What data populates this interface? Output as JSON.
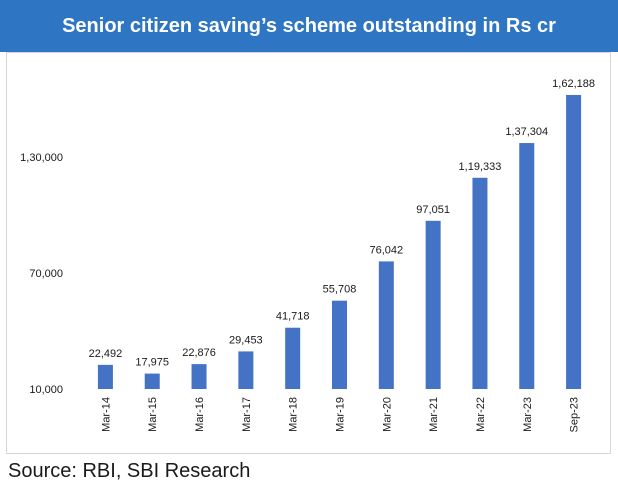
{
  "header": {
    "title": "Senior citizen saving’s scheme outstanding in Rs cr"
  },
  "footer": {
    "source": "Source: RBI, SBI Research"
  },
  "colors": {
    "title_bg": "#2e75c4",
    "bar": "#4472c4",
    "text": "#1a1a1a"
  },
  "chart_data": {
    "type": "bar",
    "title": "Senior citizen saving’s scheme outstanding in Rs cr",
    "xlabel": "",
    "ylabel": "",
    "categories": [
      "Mar-14",
      "Mar-15",
      "Mar-16",
      "Mar-17",
      "Mar-18",
      "Mar-19",
      "Mar-20",
      "Mar-21",
      "Mar-22",
      "Mar-23",
      "Sep-23"
    ],
    "values": [
      22492,
      17975,
      22876,
      29453,
      41718,
      55708,
      76042,
      97051,
      119333,
      137304,
      162188
    ],
    "value_labels": [
      "22,492",
      "17,975",
      "22,876",
      "29,453",
      "41,718",
      "55,708",
      "76,042",
      "97,051",
      "1,19,333",
      "1,37,304",
      "1,62,188"
    ],
    "yticks": [
      10000,
      70000,
      130000
    ],
    "ytick_labels": [
      "10,000",
      "70,000",
      "1,30,000"
    ],
    "ylim": [
      10000,
      165000
    ],
    "grid": false,
    "legend": "none"
  }
}
